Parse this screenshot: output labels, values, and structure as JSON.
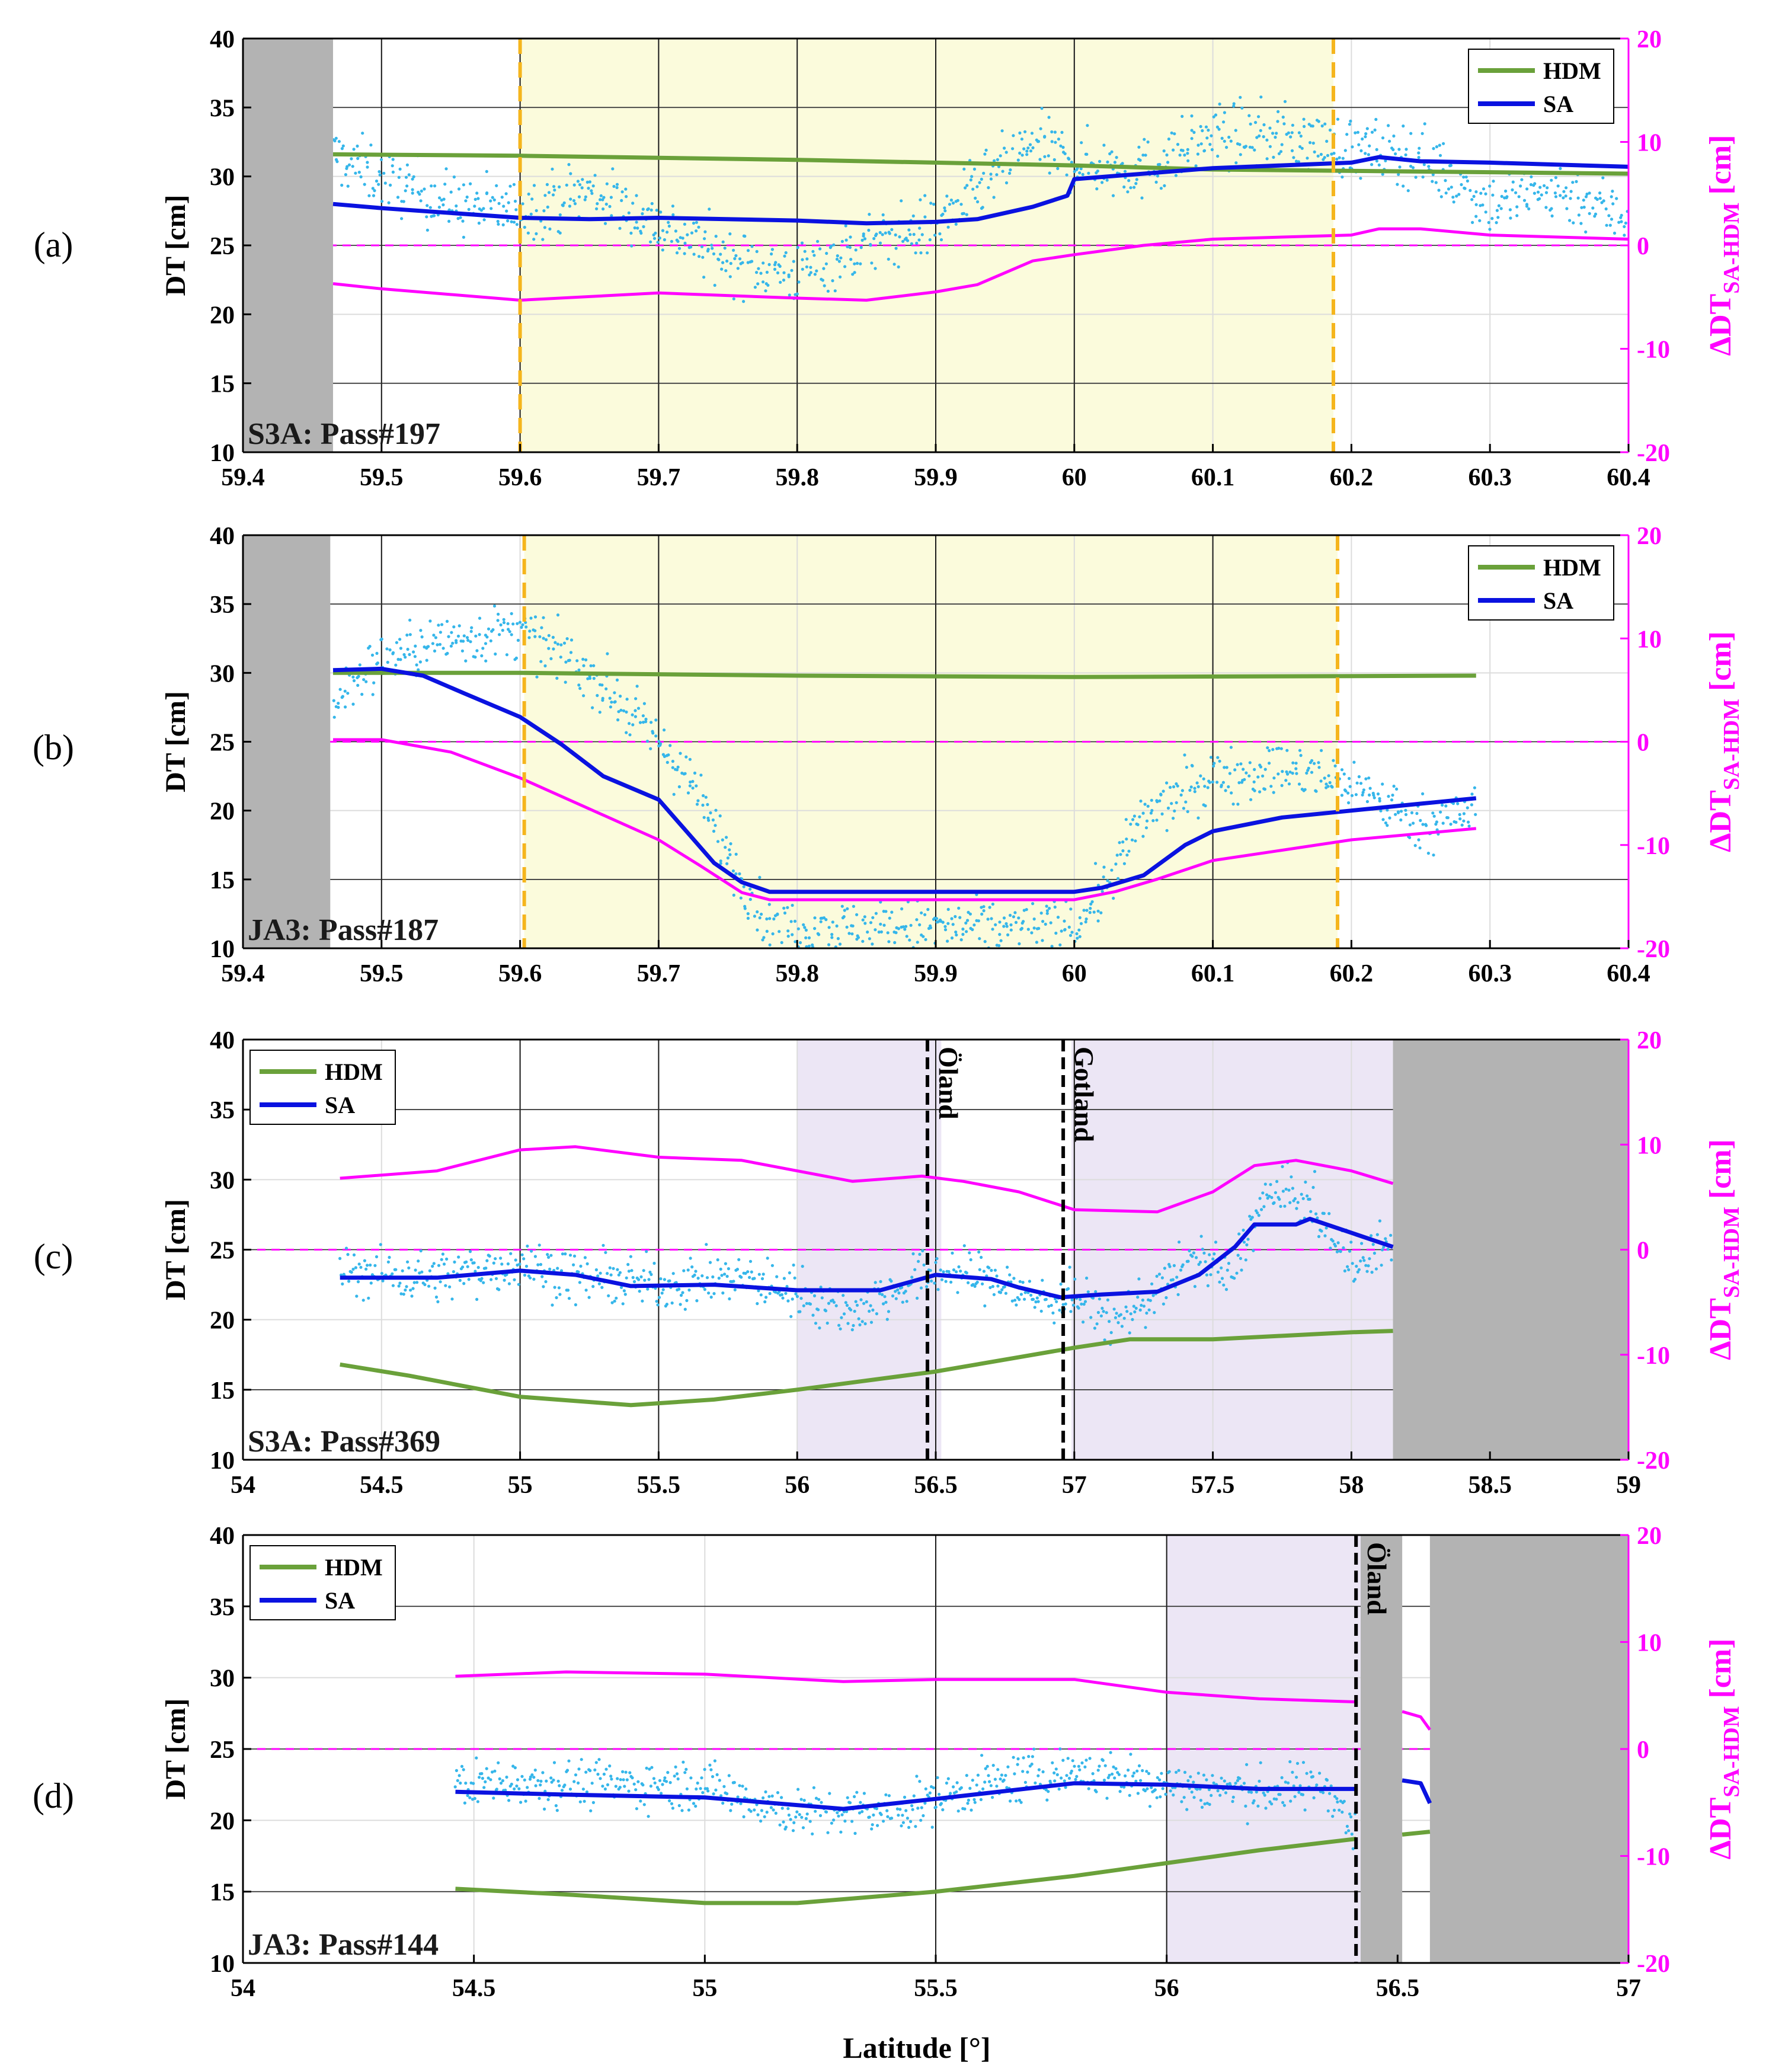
{
  "colors": {
    "hdm": "#6aa13a",
    "sa": "#0a12e0",
    "diff": "#ff00ff",
    "dots": "#35b6ea",
    "land": "#b3b3b3",
    "yellow_zone": "#fbfbdc",
    "purple_zone": "#ece6f5",
    "orange_line": "#f5b51d",
    "axis_left": "#000000",
    "axis_right": "#ff00ff"
  },
  "xlabel": "Latitude [°]",
  "chart_data": [
    {
      "id": "a",
      "type": "line",
      "panel_label": "(a)",
      "title": "S3A: Pass#197",
      "ylabel": "DT [cm]",
      "y2label": "ΔDT",
      "y2label_sub": "SA-HDM",
      "y2label_unit": " [cm]",
      "xlim": [
        59.4,
        60.4
      ],
      "ylim": [
        10,
        40
      ],
      "y2lim": [
        -20,
        20
      ],
      "xticks": [
        "59.4",
        "59.5",
        "59.6",
        "59.7",
        "59.8",
        "59.9",
        "60",
        "60.1",
        "60.2",
        "60.3",
        "60.4"
      ],
      "yticks": [
        "10",
        "15",
        "20",
        "25",
        "30",
        "35",
        "40"
      ],
      "y2ticks": [
        "-20",
        "-10",
        "0",
        "10",
        "20"
      ],
      "legend": [
        "HDM",
        "SA"
      ],
      "legend_position": "top-right",
      "land": [
        [
          59.4,
          59.465
        ]
      ],
      "shaded": {
        "kind": "yellow",
        "range": [
          59.6,
          60.187
        ]
      },
      "markers": [
        {
          "x": 59.6,
          "style": "orange-dash",
          "label": ""
        },
        {
          "x": 60.187,
          "style": "orange-dash",
          "label": ""
        }
      ],
      "vgrid_major": [
        59.5,
        59.6,
        59.7,
        59.8,
        59.9,
        60.0
      ],
      "series": {
        "hdm": {
          "x": [
            59.465,
            59.6,
            59.8,
            60.0,
            60.1,
            60.4
          ],
          "y": [
            31.6,
            31.5,
            31.2,
            30.8,
            30.5,
            30.2
          ]
        },
        "sa": {
          "x": [
            59.465,
            59.5,
            59.6,
            59.65,
            59.7,
            59.8,
            59.85,
            59.9,
            59.93,
            59.97,
            59.995,
            60.0,
            60.1,
            60.2,
            60.22,
            60.25,
            60.3,
            60.4
          ],
          "y": [
            28.0,
            27.7,
            27.0,
            26.9,
            27.0,
            26.8,
            26.6,
            26.7,
            26.9,
            27.8,
            28.6,
            29.8,
            30.6,
            31.0,
            31.4,
            31.1,
            31.0,
            30.7
          ]
        },
        "diff": {
          "x": [
            59.465,
            59.5,
            59.6,
            59.7,
            59.8,
            59.85,
            59.9,
            59.93,
            59.97,
            60.0,
            60.05,
            60.1,
            60.2,
            60.22,
            60.25,
            60.3,
            60.4
          ],
          "y": [
            -3.7,
            -4.2,
            -5.3,
            -4.6,
            -5.1,
            -5.3,
            -4.5,
            -3.8,
            -1.5,
            -0.9,
            0.0,
            0.6,
            1.0,
            1.6,
            1.6,
            1.0,
            0.6
          ]
        },
        "dots_base": {
          "x": [
            59.465,
            59.5,
            59.55,
            59.6,
            59.65,
            59.7,
            59.75,
            59.8,
            59.85,
            59.9,
            59.93,
            59.97,
            60.0,
            60.05,
            60.1,
            60.15,
            60.2,
            60.25,
            60.3,
            60.35,
            60.4
          ],
          "y": [
            31.5,
            30.0,
            28.0,
            27.5,
            29.0,
            26.5,
            24.0,
            23.0,
            25.0,
            26.5,
            29.0,
            32.5,
            31.0,
            30.5,
            33.0,
            33.0,
            32.0,
            31.5,
            28.0,
            29.0,
            27.0
          ]
        },
        "dots_noise": 1.6
      }
    },
    {
      "id": "b",
      "type": "line",
      "panel_label": "(b)",
      "title": "JA3: Pass#187",
      "ylabel": "DT [cm]",
      "y2label": "ΔDT",
      "y2label_sub": "SA-HDM",
      "y2label_unit": " [cm]",
      "xlim": [
        59.4,
        60.4
      ],
      "ylim": [
        10,
        40
      ],
      "y2lim": [
        -20,
        20
      ],
      "xticks": [
        "59.4",
        "59.5",
        "59.6",
        "59.7",
        "59.8",
        "59.9",
        "60",
        "60.1",
        "60.2",
        "60.3",
        "60.4"
      ],
      "yticks": [
        "10",
        "15",
        "20",
        "25",
        "30",
        "35",
        "40"
      ],
      "y2ticks": [
        "-20",
        "-10",
        "0",
        "10",
        "20"
      ],
      "legend": [
        "HDM",
        "SA"
      ],
      "legend_position": "top-right",
      "land": [
        [
          59.4,
          59.463
        ]
      ],
      "shaded": {
        "kind": "yellow",
        "range": [
          59.603,
          60.19
        ]
      },
      "markers": [
        {
          "x": 59.603,
          "style": "orange-dash",
          "label": ""
        },
        {
          "x": 60.19,
          "style": "orange-dash",
          "label": ""
        }
      ],
      "vgrid_major": [
        59.5,
        59.7,
        59.9,
        60.1
      ],
      "series": {
        "hdm": {
          "x": [
            59.465,
            59.6,
            59.8,
            60.0,
            60.29
          ],
          "y": [
            30.0,
            30.0,
            29.8,
            29.7,
            29.8
          ]
        },
        "sa": {
          "x": [
            59.465,
            59.5,
            59.53,
            59.56,
            59.6,
            59.63,
            59.66,
            59.7,
            59.72,
            59.74,
            59.76,
            59.78,
            59.9,
            60.0,
            60.02,
            60.05,
            60.08,
            60.1,
            60.15,
            60.2,
            60.25,
            60.29
          ],
          "y": [
            30.2,
            30.3,
            29.8,
            28.5,
            26.8,
            24.8,
            22.5,
            20.8,
            18.5,
            16.2,
            14.8,
            14.1,
            14.1,
            14.1,
            14.4,
            15.3,
            17.5,
            18.5,
            19.5,
            20.0,
            20.5,
            20.9
          ]
        },
        "diff": {
          "x": [
            59.465,
            59.5,
            59.55,
            59.6,
            59.65,
            59.7,
            59.73,
            59.76,
            59.78,
            60.0,
            60.03,
            60.06,
            60.1,
            60.15,
            60.2,
            60.29
          ],
          "y": [
            0.2,
            0.2,
            -1.0,
            -3.5,
            -6.5,
            -9.5,
            -12.0,
            -14.6,
            -15.3,
            -15.3,
            -14.5,
            -13.3,
            -11.5,
            -10.5,
            -9.5,
            -8.4
          ]
        },
        "dots_base": {
          "x": [
            59.465,
            59.5,
            59.55,
            59.6,
            59.65,
            59.7,
            59.72,
            59.75,
            59.78,
            60.0,
            60.02,
            60.05,
            60.1,
            60.15,
            60.2,
            60.25,
            60.29
          ],
          "y": [
            28.0,
            31.0,
            32.5,
            33.0,
            30.0,
            25.0,
            22.5,
            17.0,
            11.5,
            11.5,
            14.0,
            19.5,
            22.5,
            23.0,
            22.0,
            19.0,
            20.0
          ]
        },
        "dots_noise": 1.4
      }
    },
    {
      "id": "c",
      "type": "line",
      "panel_label": "(c)",
      "title": "S3A: Pass#369",
      "ylabel": "DT [cm]",
      "y2label": "ΔDT",
      "y2label_sub": "SA-HDM",
      "y2label_unit": " [cm]",
      "xlim": [
        54,
        59
      ],
      "ylim": [
        10,
        40
      ],
      "y2lim": [
        -20,
        20
      ],
      "xticks": [
        "54",
        "54.5",
        "55",
        "55.5",
        "56",
        "56.5",
        "57",
        "57.5",
        "58",
        "58.5",
        "59"
      ],
      "yticks": [
        "10",
        "15",
        "20",
        "25",
        "30",
        "35",
        "40"
      ],
      "y2ticks": [
        "-20",
        "-10",
        "0",
        "10",
        "20"
      ],
      "legend": [
        "HDM",
        "SA"
      ],
      "legend_position": "top-left",
      "land": [
        [
          58.15,
          59.0
        ]
      ],
      "shaded": {
        "kind": "purple",
        "ranges": [
          [
            56.0,
            56.52
          ],
          [
            56.99,
            58.15
          ]
        ]
      },
      "markers": [
        {
          "x": 56.47,
          "style": "black-dash",
          "label": "Öland"
        },
        {
          "x": 56.96,
          "style": "black-dash",
          "label": "Gotland"
        }
      ],
      "vgrid_major": [
        55.0,
        55.5,
        56.5,
        57.0
      ],
      "series": {
        "hdm": {
          "x": [
            54.35,
            54.6,
            55.0,
            55.4,
            55.7,
            56.0,
            56.5,
            57.0,
            57.2,
            57.5,
            58.0,
            58.15
          ],
          "y": [
            16.8,
            16.0,
            14.5,
            13.9,
            14.3,
            15.0,
            16.3,
            18.0,
            18.6,
            18.6,
            19.1,
            19.2
          ]
        },
        "sa": {
          "x": [
            54.35,
            54.7,
            55.0,
            55.2,
            55.4,
            55.7,
            56.0,
            56.3,
            56.5,
            56.7,
            56.8,
            56.95,
            57.1,
            57.3,
            57.45,
            57.58,
            57.65,
            57.8,
            57.85,
            58.0,
            58.15
          ],
          "y": [
            23.0,
            23.0,
            23.5,
            23.2,
            22.4,
            22.5,
            22.1,
            22.1,
            23.2,
            22.9,
            22.3,
            21.6,
            21.8,
            22.0,
            23.2,
            25.2,
            26.8,
            26.8,
            27.2,
            26.2,
            25.2
          ]
        },
        "diff": {
          "x": [
            54.35,
            54.7,
            55.0,
            55.2,
            55.5,
            55.8,
            56.2,
            56.45,
            56.6,
            56.8,
            57.0,
            57.3,
            57.5,
            57.65,
            57.8,
            58.0,
            58.15
          ],
          "y": [
            6.8,
            7.5,
            9.5,
            9.8,
            8.8,
            8.5,
            6.5,
            7.0,
            6.5,
            5.5,
            3.8,
            3.6,
            5.5,
            8.0,
            8.5,
            7.5,
            6.3
          ]
        },
        "dots_base": {
          "x": [
            54.35,
            54.7,
            55.0,
            55.2,
            55.5,
            55.8,
            56.0,
            56.2,
            56.35,
            56.5,
            56.7,
            56.85,
            57.0,
            57.15,
            57.3,
            57.45,
            57.55,
            57.7,
            57.85,
            57.95,
            58.05,
            58.15
          ],
          "y": [
            23.5,
            23.0,
            24.0,
            23.0,
            22.5,
            23.0,
            22.0,
            20.5,
            22.0,
            23.5,
            23.0,
            21.5,
            21.5,
            20.0,
            22.0,
            24.5,
            23.0,
            29.0,
            28.5,
            25.0,
            24.0,
            26.0
          ]
        },
        "dots_noise": 1.3
      }
    },
    {
      "id": "d",
      "type": "line",
      "panel_label": "(d)",
      "title": "JA3: Pass#144",
      "ylabel": "DT [cm]",
      "y2label": "ΔDT",
      "y2label_sub": "SA-HDM",
      "y2label_unit": " [cm]",
      "xlim": [
        54,
        57
      ],
      "ylim": [
        10,
        40
      ],
      "y2lim": [
        -20,
        20
      ],
      "xticks": [
        "54",
        "54.5",
        "55",
        "55.5",
        "56",
        "56.5",
        "57"
      ],
      "yticks": [
        "10",
        "15",
        "20",
        "25",
        "30",
        "35",
        "40"
      ],
      "y2ticks": [
        "-20",
        "-10",
        "0",
        "10",
        "20"
      ],
      "legend": [
        "HDM",
        "SA"
      ],
      "legend_position": "top-left",
      "land": [
        [
          56.42,
          56.51
        ],
        [
          56.57,
          57.0
        ]
      ],
      "shaded": {
        "kind": "purple",
        "ranges": [
          [
            56.0,
            56.42
          ]
        ]
      },
      "markers": [
        {
          "x": 56.41,
          "style": "black-dash",
          "label": "Öland"
        }
      ],
      "vgrid_major": [
        55.5,
        56.0
      ],
      "series": {
        "hdm": {
          "x": [
            54.46,
            54.7,
            55.0,
            55.2,
            55.5,
            55.8,
            56.0,
            56.2,
            56.41
          ],
          "y": [
            15.2,
            14.8,
            14.2,
            14.2,
            15.0,
            16.1,
            17.0,
            17.9,
            18.7
          ]
        },
        "hdm_extra": {
          "x": [
            56.51,
            56.57
          ],
          "y": [
            19.0,
            19.2
          ]
        },
        "sa": {
          "x": [
            54.46,
            54.7,
            55.0,
            55.3,
            55.5,
            55.8,
            56.0,
            56.2,
            56.41
          ],
          "y": [
            22.0,
            21.8,
            21.6,
            20.8,
            21.5,
            22.6,
            22.5,
            22.2,
            22.2
          ]
        },
        "sa_extra": {
          "x": [
            56.51,
            56.55,
            56.57
          ],
          "y": [
            22.8,
            22.6,
            21.2
          ]
        },
        "diff": {
          "x": [
            54.46,
            54.7,
            55.0,
            55.3,
            55.5,
            55.8,
            56.0,
            56.2,
            56.41
          ],
          "y": [
            6.8,
            7.2,
            7.0,
            6.3,
            6.5,
            6.5,
            5.3,
            4.7,
            4.4
          ]
        },
        "diff_extra": {
          "x": [
            56.51,
            56.55,
            56.57
          ],
          "y": [
            3.5,
            3.0,
            1.8
          ]
        },
        "dots_base": {
          "x": [
            54.46,
            54.6,
            54.8,
            55.0,
            55.2,
            55.4,
            55.6,
            55.8,
            56.0,
            56.2,
            56.35,
            56.41
          ],
          "y": [
            22.5,
            22.8,
            22.5,
            22.5,
            20.5,
            20.5,
            22.5,
            23.5,
            22.5,
            22.0,
            22.5,
            19.0
          ]
        },
        "dots_noise": 1.2
      }
    }
  ]
}
